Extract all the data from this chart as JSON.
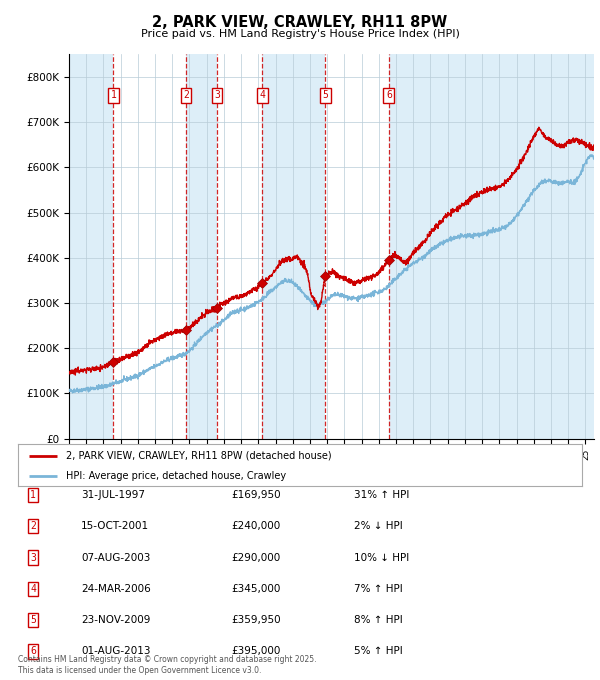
{
  "title": "2, PARK VIEW, CRAWLEY, RH11 8PW",
  "subtitle": "Price paid vs. HM Land Registry's House Price Index (HPI)",
  "legend_line1": "2, PARK VIEW, CRAWLEY, RH11 8PW (detached house)",
  "legend_line2": "HPI: Average price, detached house, Crawley",
  "footer1": "Contains HM Land Registry data © Crown copyright and database right 2025.",
  "footer2": "This data is licensed under the Open Government Licence v3.0.",
  "red_color": "#cc0000",
  "blue_color": "#7ab5d8",
  "bg_blue": "#ddeef8",
  "purchases": [
    {
      "num": 1,
      "date": "31-JUL-1997",
      "price": 169950,
      "pct": "31%",
      "dir": "↑",
      "year_x": 1997.58
    },
    {
      "num": 2,
      "date": "15-OCT-2001",
      "price": 240000,
      "pct": "2%",
      "dir": "↓",
      "year_x": 2001.79
    },
    {
      "num": 3,
      "date": "07-AUG-2003",
      "price": 290000,
      "pct": "10%",
      "dir": "↓",
      "year_x": 2003.6
    },
    {
      "num": 4,
      "date": "24-MAR-2006",
      "price": 345000,
      "pct": "7%",
      "dir": "↑",
      "year_x": 2006.23
    },
    {
      "num": 5,
      "date": "23-NOV-2009",
      "price": 359950,
      "pct": "8%",
      "dir": "↑",
      "year_x": 2009.9
    },
    {
      "num": 6,
      "date": "01-AUG-2013",
      "price": 395000,
      "pct": "5%",
      "dir": "↑",
      "year_x": 2013.58
    }
  ],
  "xmin": 1995.0,
  "xmax": 2025.5,
  "ymin": 0,
  "ymax": 850000,
  "yticks": [
    0,
    100000,
    200000,
    300000,
    400000,
    500000,
    600000,
    700000,
    800000
  ],
  "ytick_labels": [
    "£0",
    "£100K",
    "£200K",
    "£300K",
    "£400K",
    "£500K",
    "£600K",
    "£700K",
    "£800K"
  ],
  "hpi_data": [
    [
      1995.0,
      105000
    ],
    [
      1995.5,
      107000
    ],
    [
      1996.0,
      109000
    ],
    [
      1996.5,
      112000
    ],
    [
      1997.0,
      115000
    ],
    [
      1997.5,
      120000
    ],
    [
      1998.0,
      127000
    ],
    [
      1998.5,
      133000
    ],
    [
      1999.0,
      140000
    ],
    [
      1999.5,
      150000
    ],
    [
      2000.0,
      160000
    ],
    [
      2000.5,
      170000
    ],
    [
      2001.0,
      178000
    ],
    [
      2001.5,
      184000
    ],
    [
      2002.0,
      195000
    ],
    [
      2002.5,
      215000
    ],
    [
      2003.0,
      235000
    ],
    [
      2003.5,
      248000
    ],
    [
      2004.0,
      262000
    ],
    [
      2004.5,
      278000
    ],
    [
      2005.0,
      285000
    ],
    [
      2005.5,
      292000
    ],
    [
      2006.0,
      303000
    ],
    [
      2006.5,
      318000
    ],
    [
      2007.0,
      335000
    ],
    [
      2007.5,
      348000
    ],
    [
      2008.0,
      345000
    ],
    [
      2008.5,
      325000
    ],
    [
      2009.0,
      305000
    ],
    [
      2009.5,
      295000
    ],
    [
      2010.0,
      308000
    ],
    [
      2010.5,
      318000
    ],
    [
      2011.0,
      315000
    ],
    [
      2011.5,
      310000
    ],
    [
      2012.0,
      312000
    ],
    [
      2012.5,
      318000
    ],
    [
      2013.0,
      325000
    ],
    [
      2013.5,
      335000
    ],
    [
      2014.0,
      355000
    ],
    [
      2014.5,
      372000
    ],
    [
      2015.0,
      388000
    ],
    [
      2015.5,
      400000
    ],
    [
      2016.0,
      415000
    ],
    [
      2016.5,
      428000
    ],
    [
      2017.0,
      438000
    ],
    [
      2017.5,
      445000
    ],
    [
      2018.0,
      448000
    ],
    [
      2018.5,
      450000
    ],
    [
      2019.0,
      453000
    ],
    [
      2019.5,
      458000
    ],
    [
      2020.0,
      462000
    ],
    [
      2020.5,
      472000
    ],
    [
      2021.0,
      492000
    ],
    [
      2021.5,
      520000
    ],
    [
      2022.0,
      548000
    ],
    [
      2022.5,
      568000
    ],
    [
      2023.0,
      570000
    ],
    [
      2023.5,
      565000
    ],
    [
      2024.0,
      568000
    ],
    [
      2024.5,
      572000
    ],
    [
      2025.0,
      610000
    ],
    [
      2025.5,
      620000
    ]
  ],
  "prop_data": [
    [
      1995.0,
      148000
    ],
    [
      1995.5,
      150000
    ],
    [
      1996.0,
      152000
    ],
    [
      1996.5,
      155000
    ],
    [
      1997.0,
      158000
    ],
    [
      1997.58,
      169950
    ],
    [
      1997.8,
      172000
    ],
    [
      1998.0,
      175000
    ],
    [
      1998.5,
      183000
    ],
    [
      1999.0,
      192000
    ],
    [
      1999.5,
      205000
    ],
    [
      2000.0,
      218000
    ],
    [
      2000.5,
      228000
    ],
    [
      2001.0,
      235000
    ],
    [
      2001.5,
      238000
    ],
    [
      2001.79,
      240000
    ],
    [
      2002.0,
      245000
    ],
    [
      2002.5,
      262000
    ],
    [
      2003.0,
      278000
    ],
    [
      2003.6,
      290000
    ],
    [
      2003.8,
      295000
    ],
    [
      2004.0,
      300000
    ],
    [
      2004.5,
      310000
    ],
    [
      2005.0,
      315000
    ],
    [
      2005.5,
      325000
    ],
    [
      2006.0,
      335000
    ],
    [
      2006.23,
      345000
    ],
    [
      2006.5,
      352000
    ],
    [
      2007.0,
      375000
    ],
    [
      2007.5,
      395000
    ],
    [
      2008.0,
      398000
    ],
    [
      2008.3,
      402000
    ],
    [
      2008.6,
      385000
    ],
    [
      2008.9,
      355000
    ],
    [
      2009.0,
      330000
    ],
    [
      2009.3,
      305000
    ],
    [
      2009.6,
      298000
    ],
    [
      2009.9,
      359950
    ],
    [
      2010.0,
      362000
    ],
    [
      2010.3,
      370000
    ],
    [
      2010.5,
      365000
    ],
    [
      2011.0,
      355000
    ],
    [
      2011.5,
      345000
    ],
    [
      2012.0,
      350000
    ],
    [
      2012.5,
      358000
    ],
    [
      2013.0,
      368000
    ],
    [
      2013.58,
      395000
    ],
    [
      2014.0,
      405000
    ],
    [
      2014.5,
      390000
    ],
    [
      2015.0,
      410000
    ],
    [
      2015.5,
      430000
    ],
    [
      2016.0,
      455000
    ],
    [
      2016.5,
      475000
    ],
    [
      2017.0,
      495000
    ],
    [
      2017.5,
      508000
    ],
    [
      2018.0,
      520000
    ],
    [
      2018.5,
      535000
    ],
    [
      2019.0,
      545000
    ],
    [
      2019.5,
      552000
    ],
    [
      2020.0,
      558000
    ],
    [
      2020.5,
      572000
    ],
    [
      2021.0,
      595000
    ],
    [
      2021.5,
      630000
    ],
    [
      2022.0,
      668000
    ],
    [
      2022.3,
      685000
    ],
    [
      2022.6,
      672000
    ],
    [
      2023.0,
      660000
    ],
    [
      2023.5,
      648000
    ],
    [
      2024.0,
      655000
    ],
    [
      2024.5,
      660000
    ],
    [
      2025.0,
      650000
    ],
    [
      2025.5,
      645000
    ]
  ]
}
